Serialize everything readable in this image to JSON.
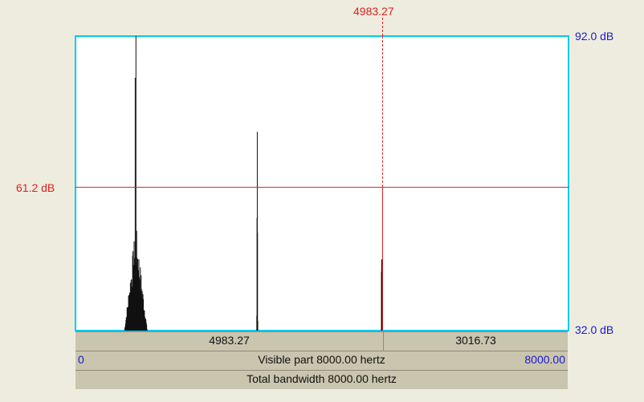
{
  "cursor": {
    "freq_label": "4983.27",
    "db_label": "61.2 dB"
  },
  "axis": {
    "top_db": "92.0 dB",
    "bottom_db": "32.0 dB"
  },
  "bottom_bars": {
    "left_segment": "4983.27",
    "right_segment": "3016.73",
    "visible_start": "0",
    "visible_label": "Visible part 8000.00 hertz",
    "visible_end": "8000.00",
    "total_label": "Total bandwidth 8000.00 hertz"
  },
  "colors": {
    "frame": "#00ccee",
    "cursor": "#e02020",
    "axis_text": "#1a1acc",
    "trace": "#111111"
  },
  "chart_data": {
    "type": "line",
    "x_unit": "hertz",
    "y_unit": "dB",
    "xlim": [
      0,
      8000
    ],
    "ylim": [
      32.0,
      92.0
    ],
    "cursor": {
      "x": 4983.27,
      "y": 61.2
    },
    "peaks": [
      {
        "x": 980,
        "y": 92.0,
        "spread": 370
      },
      {
        "x": 2950,
        "y": 72.5,
        "spread": 40
      },
      {
        "x": 4970,
        "y": 46.5,
        "spread": 30
      }
    ]
  }
}
